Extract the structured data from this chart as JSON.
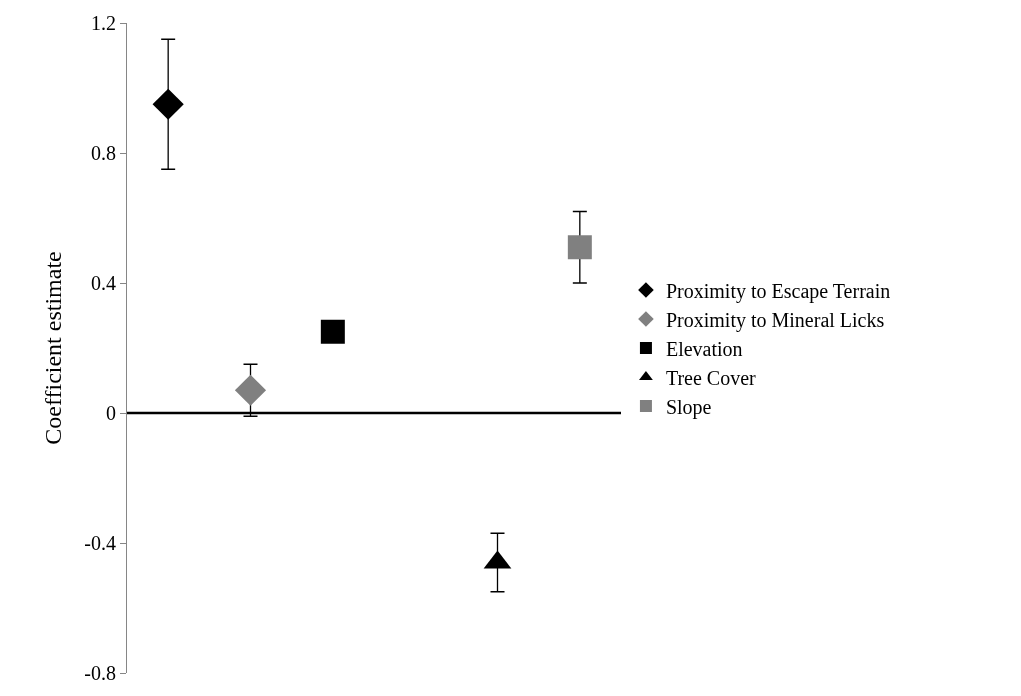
{
  "chart_data": {
    "type": "scatter",
    "ylabel": "Coefficient estimate",
    "categories": [
      null,
      null,
      null,
      null,
      null,
      null
    ],
    "ylim": [
      -0.8,
      1.2
    ],
    "yticks": [
      -0.8,
      -0.4,
      0,
      0.4,
      0.8,
      1.2
    ],
    "tick_labels": "y",
    "legend": "right",
    "ref_lines": [
      {
        "axis": "y",
        "value": 0,
        "color": "#000000",
        "line_style": "solid"
      }
    ],
    "series": [
      {
        "name": "Proximity to Escape Terrain",
        "color": "#000000",
        "marker": "diamond",
        "values": [
          0.95,
          null,
          null,
          null,
          null,
          null
        ],
        "errors": [
          0.2,
          null,
          null,
          null,
          null,
          null
        ]
      },
      {
        "name": "Proximity to Mineral Licks",
        "color": "#808080",
        "marker": "diamond",
        "values": [
          null,
          0.07,
          null,
          null,
          null,
          null
        ],
        "errors": [
          null,
          0.08,
          null,
          null,
          null,
          null
        ]
      },
      {
        "name": "Elevation",
        "color": "#000000",
        "marker": "square",
        "values": [
          null,
          null,
          0.25,
          null,
          null,
          null
        ]
      },
      {
        "name": "Tree Cover",
        "color": "#000000",
        "marker": "triangle",
        "values": [
          null,
          null,
          null,
          null,
          -0.46,
          null
        ],
        "errors": [
          null,
          null,
          null,
          null,
          0.09,
          null
        ]
      },
      {
        "name": "Slope",
        "color": "#808080",
        "marker": "square",
        "values": [
          null,
          null,
          null,
          null,
          null,
          0.51
        ],
        "errors": [
          null,
          null,
          null,
          null,
          null,
          0.11
        ]
      }
    ]
  }
}
